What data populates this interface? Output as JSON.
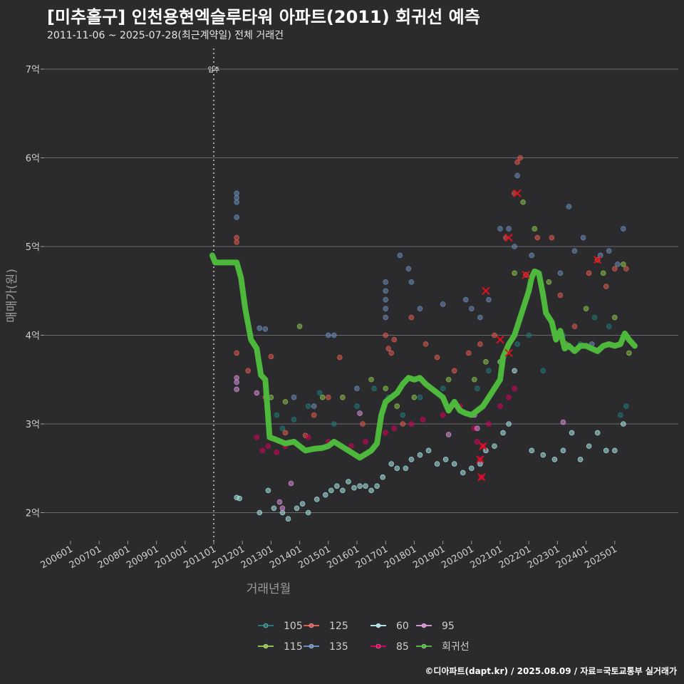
{
  "title": "[미추홀구] 인천용현엑슬루타워 아파트(2011) 회귀선 예측",
  "subtitle": "2011-11-06 ~ 2025-07-28(최근계약일) 전체 거래건",
  "footer": "©디아파트(dapt.kr) / 2025.08.09 / 자료=국토교통부 실거래가",
  "chart_data": {
    "type": "scatter",
    "xlabel": "거래년월",
    "ylabel": "매매가(원)",
    "xlim": [
      2005.1,
      2026.9
    ],
    "ylim": [
      1.7,
      7.35
    ],
    "y_ticks": [
      2,
      3,
      4,
      5,
      6,
      7
    ],
    "y_tick_labels": [
      "2억",
      "3억",
      "4억",
      "5억",
      "6억",
      "7억"
    ],
    "x_ticks": [
      2006,
      2007,
      2008,
      2009,
      2010,
      2011,
      2012,
      2013,
      2014,
      2015,
      2016,
      2017,
      2018,
      2019,
      2020,
      2021,
      2022,
      2023,
      2024,
      2025
    ],
    "x_tick_labels": [
      "200601",
      "200701",
      "200801",
      "200901",
      "201001",
      "201101",
      "201201",
      "201301",
      "201401",
      "201501",
      "201601",
      "201701",
      "201801",
      "201901",
      "202001",
      "202101",
      "202201",
      "202301",
      "202401",
      "202501"
    ],
    "vline": {
      "x": 2011.0,
      "label": "입주"
    },
    "grid": true,
    "legend_position": "bottom",
    "series": [
      {
        "name": "105",
        "color": "#1f7a7a",
        "points": [
          [
            2013.2,
            3.1
          ],
          [
            2013.4,
            2.95
          ],
          [
            2013.8,
            3.05
          ],
          [
            2014.3,
            3.2
          ],
          [
            2014.7,
            3.35
          ],
          [
            2015.2,
            3.0
          ],
          [
            2016.0,
            3.2
          ],
          [
            2016.6,
            3.4
          ],
          [
            2017.1,
            3.3
          ],
          [
            2017.6,
            3.1
          ],
          [
            2018.2,
            3.3
          ],
          [
            2019.0,
            3.4
          ],
          [
            2019.5,
            3.2
          ],
          [
            2020.2,
            3.4
          ],
          [
            2020.6,
            3.6
          ],
          [
            2021.0,
            3.7
          ],
          [
            2021.6,
            3.9
          ],
          [
            2022.0,
            4.0
          ],
          [
            2022.5,
            3.6
          ],
          [
            2023.2,
            4.0
          ],
          [
            2023.8,
            3.9
          ],
          [
            2024.3,
            4.2
          ],
          [
            2024.8,
            4.1
          ],
          [
            2025.2,
            3.1
          ],
          [
            2025.4,
            3.2
          ]
        ]
      },
      {
        "name": "115",
        "color": "#8bc34a",
        "points": [
          [
            2013.0,
            3.3
          ],
          [
            2013.5,
            3.25
          ],
          [
            2014.0,
            4.1
          ],
          [
            2014.8,
            3.3
          ],
          [
            2015.5,
            3.3
          ],
          [
            2016.5,
            3.5
          ],
          [
            2017.0,
            3.4
          ],
          [
            2017.4,
            3.2
          ],
          [
            2018.0,
            3.3
          ],
          [
            2019.2,
            3.5
          ],
          [
            2020.1,
            3.5
          ],
          [
            2020.5,
            3.7
          ],
          [
            2021.0,
            3.7
          ],
          [
            2021.5,
            4.7
          ],
          [
            2021.8,
            5.5
          ],
          [
            2022.2,
            5.2
          ],
          [
            2022.7,
            4.6
          ],
          [
            2023.3,
            3.9
          ],
          [
            2024.0,
            4.3
          ],
          [
            2024.6,
            4.7
          ],
          [
            2025.0,
            4.2
          ],
          [
            2025.3,
            4.8
          ],
          [
            2025.5,
            3.8
          ]
        ]
      },
      {
        "name": "125",
        "color": "#e05a4f",
        "points": [
          [
            2011.8,
            5.1
          ],
          [
            2011.8,
            5.05
          ],
          [
            2011.8,
            3.8
          ],
          [
            2012.2,
            3.6
          ],
          [
            2012.8,
            3.3
          ],
          [
            2013.0,
            3.76
          ],
          [
            2013.5,
            2.9
          ],
          [
            2014.2,
            2.87
          ],
          [
            2014.5,
            3.1
          ],
          [
            2015.0,
            3.3
          ],
          [
            2015.4,
            3.75
          ],
          [
            2016.2,
            3.0
          ],
          [
            2017.0,
            4.0
          ],
          [
            2017.1,
            3.85
          ],
          [
            2017.2,
            3.8
          ],
          [
            2017.3,
            3.95
          ],
          [
            2017.6,
            3.0
          ],
          [
            2017.9,
            4.2
          ],
          [
            2018.4,
            3.9
          ],
          [
            2018.8,
            3.75
          ],
          [
            2019.4,
            3.6
          ],
          [
            2019.9,
            3.8
          ],
          [
            2020.3,
            3.9
          ],
          [
            2020.8,
            4.0
          ],
          [
            2021.2,
            5.1
          ],
          [
            2021.5,
            5.6
          ],
          [
            2021.6,
            5.95
          ],
          [
            2021.7,
            6.0
          ],
          [
            2021.9,
            4.68
          ],
          [
            2022.3,
            5.1
          ],
          [
            2022.8,
            5.1
          ],
          [
            2023.1,
            4.45
          ],
          [
            2023.6,
            4.1
          ],
          [
            2024.1,
            4.7
          ],
          [
            2024.4,
            4.85
          ],
          [
            2024.7,
            4.55
          ],
          [
            2025.0,
            4.75
          ],
          [
            2025.4,
            4.75
          ]
        ]
      },
      {
        "name": "135",
        "color": "#6b8cb8",
        "points": [
          [
            2011.8,
            5.6
          ],
          [
            2011.8,
            5.55
          ],
          [
            2011.8,
            5.5
          ],
          [
            2011.8,
            5.33
          ],
          [
            2012.6,
            4.08
          ],
          [
            2012.8,
            4.07
          ],
          [
            2013.8,
            3.3
          ],
          [
            2014.5,
            3.2
          ],
          [
            2015.0,
            4.0
          ],
          [
            2015.2,
            4.0
          ],
          [
            2016.0,
            3.4
          ],
          [
            2016.8,
            3.0
          ],
          [
            2017.0,
            4.6
          ],
          [
            2017.0,
            4.5
          ],
          [
            2017.0,
            4.4
          ],
          [
            2017.0,
            4.3
          ],
          [
            2017.0,
            4.2
          ],
          [
            2017.5,
            4.9
          ],
          [
            2017.8,
            4.75
          ],
          [
            2017.9,
            4.6
          ],
          [
            2018.2,
            4.3
          ],
          [
            2019.0,
            4.35
          ],
          [
            2019.8,
            4.4
          ],
          [
            2020.0,
            4.3
          ],
          [
            2020.3,
            4.2
          ],
          [
            2020.6,
            4.4
          ],
          [
            2021.0,
            5.2
          ],
          [
            2021.3,
            5.2
          ],
          [
            2021.5,
            5.0
          ],
          [
            2021.6,
            5.8
          ],
          [
            2022.1,
            4.9
          ],
          [
            2023.1,
            4.7
          ],
          [
            2023.4,
            5.45
          ],
          [
            2023.6,
            4.95
          ],
          [
            2023.9,
            5.1
          ],
          [
            2024.2,
            3.9
          ],
          [
            2024.5,
            4.9
          ],
          [
            2024.8,
            4.95
          ],
          [
            2025.1,
            4.8
          ],
          [
            2025.3,
            5.2
          ]
        ]
      },
      {
        "name": "60",
        "color": "#a8e6e6",
        "points": [
          [
            2011.8,
            2.17
          ],
          [
            2011.9,
            2.16
          ],
          [
            2012.6,
            2.0
          ],
          [
            2012.9,
            2.25
          ],
          [
            2013.1,
            2.05
          ],
          [
            2013.4,
            2.0
          ],
          [
            2013.6,
            1.93
          ],
          [
            2013.9,
            2.05
          ],
          [
            2014.1,
            2.1
          ],
          [
            2014.3,
            2.0
          ],
          [
            2014.6,
            2.15
          ],
          [
            2014.9,
            2.2
          ],
          [
            2015.1,
            2.25
          ],
          [
            2015.3,
            2.3
          ],
          [
            2015.5,
            2.25
          ],
          [
            2015.7,
            2.35
          ],
          [
            2015.9,
            2.28
          ],
          [
            2016.1,
            2.3
          ],
          [
            2016.3,
            2.3
          ],
          [
            2016.5,
            2.25
          ],
          [
            2016.7,
            2.3
          ],
          [
            2016.9,
            2.4
          ],
          [
            2017.2,
            2.55
          ],
          [
            2017.4,
            2.5
          ],
          [
            2017.7,
            2.5
          ],
          [
            2017.9,
            2.6
          ],
          [
            2018.2,
            2.65
          ],
          [
            2018.5,
            2.7
          ],
          [
            2018.8,
            2.55
          ],
          [
            2019.1,
            2.6
          ],
          [
            2019.4,
            2.55
          ],
          [
            2019.7,
            2.45
          ],
          [
            2020.0,
            2.5
          ],
          [
            2020.3,
            2.55
          ],
          [
            2020.5,
            2.7
          ],
          [
            2020.8,
            2.75
          ],
          [
            2021.1,
            2.9
          ],
          [
            2021.3,
            3.0
          ],
          [
            2021.5,
            3.6
          ],
          [
            2022.1,
            2.7
          ],
          [
            2022.5,
            2.65
          ],
          [
            2022.9,
            2.6
          ],
          [
            2023.2,
            2.7
          ],
          [
            2023.5,
            2.9
          ],
          [
            2023.8,
            2.6
          ],
          [
            2024.1,
            2.75
          ],
          [
            2024.4,
            2.9
          ],
          [
            2024.7,
            2.7
          ],
          [
            2025.0,
            2.7
          ],
          [
            2025.3,
            3.0
          ]
        ]
      },
      {
        "name": "85",
        "color": "#d6005a",
        "points": [
          [
            2012.5,
            2.85
          ],
          [
            2012.7,
            2.7
          ],
          [
            2012.9,
            2.75
          ],
          [
            2013.2,
            2.68
          ],
          [
            2013.5,
            2.75
          ],
          [
            2014.3,
            2.85
          ],
          [
            2015.0,
            2.8
          ],
          [
            2015.8,
            2.75
          ],
          [
            2016.3,
            2.8
          ],
          [
            2017.0,
            2.9
          ],
          [
            2017.3,
            2.95
          ],
          [
            2017.9,
            3.0
          ],
          [
            2018.3,
            3.05
          ],
          [
            2019.0,
            3.1
          ],
          [
            2019.6,
            3.2
          ],
          [
            2020.1,
            2.95
          ],
          [
            2020.2,
            2.8
          ],
          [
            2020.3,
            2.6
          ],
          [
            2020.35,
            2.4
          ],
          [
            2020.4,
            2.75
          ],
          [
            2020.6,
            3.0
          ],
          [
            2021.0,
            3.2
          ],
          [
            2021.3,
            3.3
          ],
          [
            2021.5,
            3.4
          ]
        ]
      },
      {
        "name": "95",
        "color": "#d68fd6",
        "points": [
          [
            2011.8,
            3.52
          ],
          [
            2011.8,
            3.47
          ],
          [
            2011.8,
            3.39
          ],
          [
            2012.5,
            3.35
          ],
          [
            2013.3,
            2.12
          ],
          [
            2013.4,
            2.05
          ],
          [
            2013.7,
            2.33
          ],
          [
            2016.1,
            3.12
          ],
          [
            2019.2,
            2.88
          ],
          [
            2020.1,
            3.1
          ],
          [
            2020.2,
            2.95
          ],
          [
            2023.2,
            3.02
          ]
        ]
      }
    ],
    "regression": {
      "name": "회귀선",
      "color": "#4db83c",
      "points": [
        [
          2010.95,
          4.9
        ],
        [
          2011.05,
          4.82
        ],
        [
          2011.8,
          4.82
        ],
        [
          2011.95,
          4.65
        ],
        [
          2012.1,
          4.3
        ],
        [
          2012.3,
          3.95
        ],
        [
          2012.5,
          3.85
        ],
        [
          2012.65,
          3.55
        ],
        [
          2012.8,
          3.5
        ],
        [
          2012.95,
          2.85
        ],
        [
          2013.2,
          2.82
        ],
        [
          2013.5,
          2.78
        ],
        [
          2013.8,
          2.8
        ],
        [
          2014.0,
          2.75
        ],
        [
          2014.2,
          2.7
        ],
        [
          2014.5,
          2.72
        ],
        [
          2014.8,
          2.73
        ],
        [
          2015.0,
          2.75
        ],
        [
          2015.2,
          2.8
        ],
        [
          2015.4,
          2.76
        ],
        [
          2015.6,
          2.72
        ],
        [
          2015.8,
          2.68
        ],
        [
          2016.1,
          2.62
        ],
        [
          2016.3,
          2.66
        ],
        [
          2016.5,
          2.7
        ],
        [
          2016.7,
          2.78
        ],
        [
          2016.85,
          3.1
        ],
        [
          2017.0,
          3.25
        ],
        [
          2017.2,
          3.3
        ],
        [
          2017.4,
          3.35
        ],
        [
          2017.6,
          3.45
        ],
        [
          2017.8,
          3.52
        ],
        [
          2018.0,
          3.5
        ],
        [
          2018.2,
          3.52
        ],
        [
          2018.4,
          3.45
        ],
        [
          2018.6,
          3.4
        ],
        [
          2018.8,
          3.35
        ],
        [
          2019.0,
          3.3
        ],
        [
          2019.2,
          3.15
        ],
        [
          2019.4,
          3.25
        ],
        [
          2019.6,
          3.15
        ],
        [
          2019.8,
          3.12
        ],
        [
          2020.0,
          3.1
        ],
        [
          2020.2,
          3.15
        ],
        [
          2020.4,
          3.2
        ],
        [
          2020.6,
          3.3
        ],
        [
          2020.8,
          3.4
        ],
        [
          2021.0,
          3.5
        ],
        [
          2021.1,
          3.75
        ],
        [
          2021.3,
          3.9
        ],
        [
          2021.5,
          4.0
        ],
        [
          2021.7,
          4.2
        ],
        [
          2021.85,
          4.35
        ],
        [
          2022.0,
          4.5
        ],
        [
          2022.1,
          4.65
        ],
        [
          2022.2,
          4.72
        ],
        [
          2022.35,
          4.7
        ],
        [
          2022.5,
          4.45
        ],
        [
          2022.6,
          4.25
        ],
        [
          2022.8,
          4.15
        ],
        [
          2022.95,
          3.95
        ],
        [
          2023.1,
          4.05
        ],
        [
          2023.25,
          3.85
        ],
        [
          2023.4,
          3.88
        ],
        [
          2023.6,
          3.82
        ],
        [
          2023.8,
          3.88
        ],
        [
          2024.0,
          3.88
        ],
        [
          2024.2,
          3.85
        ],
        [
          2024.4,
          3.82
        ],
        [
          2024.6,
          3.88
        ],
        [
          2024.8,
          3.9
        ],
        [
          2025.0,
          3.88
        ],
        [
          2025.2,
          3.9
        ],
        [
          2025.35,
          4.02
        ],
        [
          2025.5,
          3.95
        ],
        [
          2025.7,
          3.88
        ]
      ]
    },
    "highlighted_x_markers": [
      [
        2020.3,
        2.6
      ],
      [
        2020.35,
        2.4
      ],
      [
        2020.4,
        2.75
      ],
      [
        2020.5,
        4.5
      ],
      [
        2021.0,
        3.95
      ],
      [
        2021.3,
        3.8
      ],
      [
        2021.3,
        5.1
      ],
      [
        2021.6,
        5.6
      ],
      [
        2021.9,
        4.68
      ],
      [
        2024.4,
        4.85
      ]
    ],
    "legend": [
      "105",
      "125",
      "60",
      "95",
      "115",
      "135",
      "85",
      "회귀선"
    ]
  }
}
